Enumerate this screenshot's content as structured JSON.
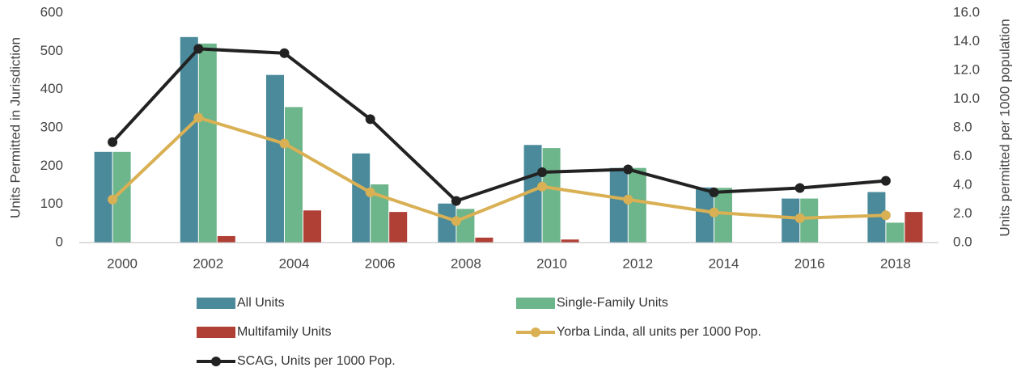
{
  "chart_data": {
    "type": "bar",
    "categories": [
      "2000",
      "2002",
      "2004",
      "2006",
      "2008",
      "2010",
      "2012",
      "2014",
      "2016",
      "2018"
    ],
    "ylabel": "Units Permitted in Jurisdiction",
    "y2label": "Units permitted per 1000 population",
    "ylim": [
      0,
      600
    ],
    "yticks": [
      0,
      100,
      200,
      300,
      400,
      500,
      600
    ],
    "y2lim": [
      0,
      16
    ],
    "y2ticks": [
      {
        "value": 0,
        "label": "0.0"
      },
      {
        "value": 2,
        "label": "2.0"
      },
      {
        "value": 4,
        "label": "4.0"
      },
      {
        "value": 6,
        "label": "6.0"
      },
      {
        "value": 8,
        "label": "8.0"
      },
      {
        "value": 10,
        "label": "10.0"
      },
      {
        "value": 12,
        "label": "12.0"
      },
      {
        "value": 14,
        "label": "14.0"
      },
      {
        "value": 16,
        "label": "16.0"
      }
    ],
    "series": [
      {
        "name": "All Units",
        "type": "bar",
        "color": "#4a8a9b",
        "values": [
          237,
          537,
          438,
          233,
          102,
          255,
          195,
          144,
          115,
          132
        ]
      },
      {
        "name": "Single-Family Units",
        "type": "bar",
        "color": "#6db58a",
        "values": [
          237,
          520,
          354,
          152,
          88,
          247,
          195,
          143,
          115,
          52
        ]
      },
      {
        "name": "Multifamily Units",
        "type": "bar",
        "color": "#b04036",
        "values": [
          0,
          17,
          84,
          80,
          13,
          8,
          0,
          0,
          0,
          80
        ]
      },
      {
        "name": "Yorba Linda, all units per 1000 Pop.",
        "type": "line",
        "axis": "y2",
        "color": "#d9b054",
        "values": [
          3.0,
          8.7,
          6.9,
          3.5,
          1.5,
          3.9,
          3.0,
          2.1,
          1.7,
          1.9
        ]
      },
      {
        "name": "SCAG, Units per 1000 Pop.",
        "type": "line",
        "axis": "y2",
        "color": "#222222",
        "values": [
          7.0,
          13.5,
          13.2,
          8.6,
          2.9,
          4.9,
          5.1,
          3.5,
          3.8,
          4.3
        ]
      }
    ]
  }
}
